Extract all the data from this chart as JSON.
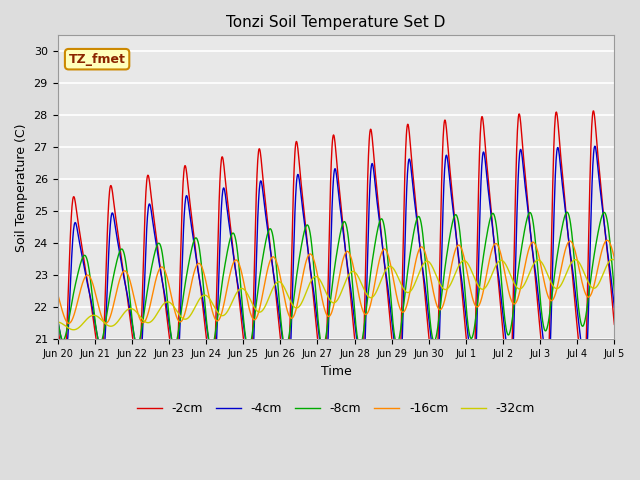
{
  "title": "Tonzi Soil Temperature Set D",
  "xlabel": "Time",
  "ylabel": "Soil Temperature (C)",
  "ylim": [
    21.0,
    30.5
  ],
  "yticks": [
    21.0,
    22.0,
    23.0,
    24.0,
    25.0,
    26.0,
    27.0,
    28.0,
    29.0,
    30.0
  ],
  "annotation_text": "TZ_fmet",
  "series_colors": [
    "#dd0000",
    "#0000cc",
    "#00aa00",
    "#ff8800",
    "#cccc00"
  ],
  "series_labels": [
    "-2cm",
    "-4cm",
    "-8cm",
    "-16cm",
    "-32cm"
  ],
  "background_color": "#dddddd",
  "plot_bg_color": "#e8e8e8",
  "xtick_labels": [
    "Jun 20",
    "Jun 21",
    "Jun 22",
    "Jun 23",
    "Jun 24",
    "Jun 25",
    "Jun 26",
    "Jun 27",
    "Jun 28",
    "Jun 29",
    "Jun 30",
    "Jul 1",
    "Jul 2",
    "Jul 3",
    "Jul 4",
    "Jul 5"
  ]
}
